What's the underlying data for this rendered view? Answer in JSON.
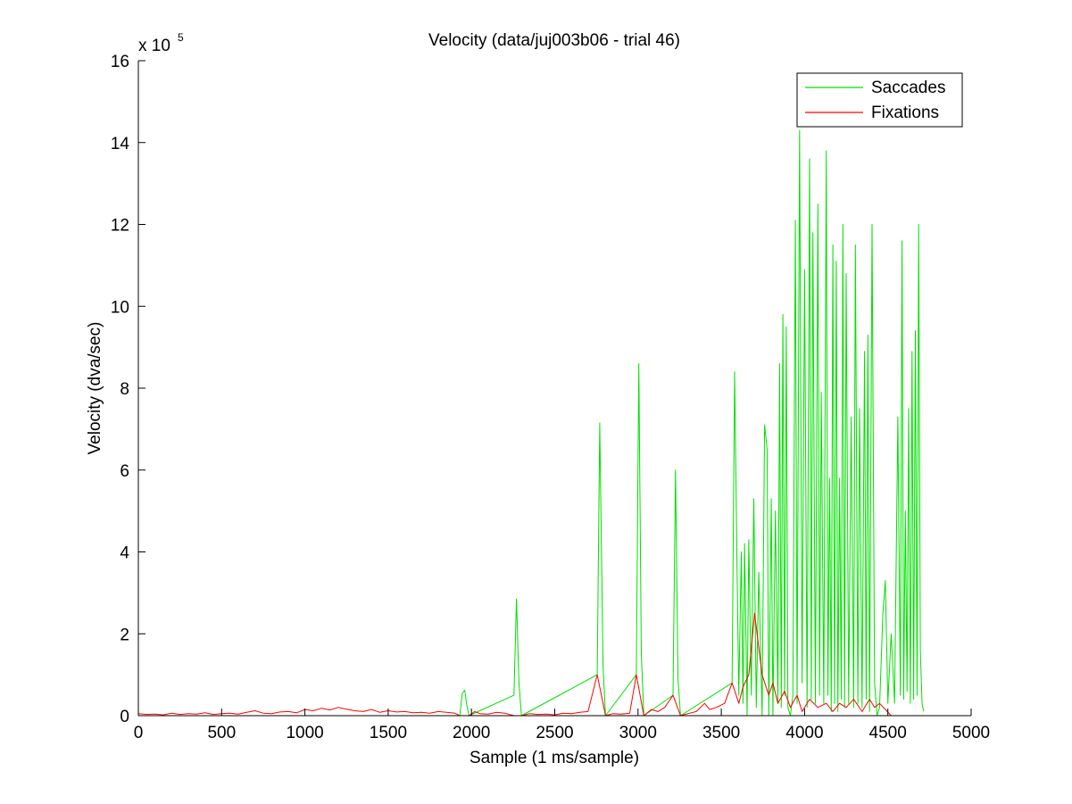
{
  "chart_data": {
    "type": "line",
    "title": "Velocity (data/juj003b06 - trial 46)",
    "xlabel": "Sample (1 ms/sample)",
    "ylabel": "Velocity (dva/sec)",
    "exponent_label": {
      "base": "x 10",
      "power": "5"
    },
    "xlim": [
      0,
      5000
    ],
    "ylim": [
      0,
      16
    ],
    "y_multiplier": 100000,
    "xticks": [
      0,
      500,
      1000,
      1500,
      2000,
      2500,
      3000,
      3500,
      4000,
      4500,
      5000
    ],
    "yticks": [
      0,
      2,
      4,
      6,
      8,
      10,
      12,
      14,
      16
    ],
    "grid": false,
    "legend_position": "top-right",
    "colors": {
      "saccades": "#00e000",
      "fixations": "#ff0000",
      "axes": "#000000"
    },
    "series": [
      {
        "name": "Saccades",
        "color": "#00e000",
        "x": [
          1930,
          1945,
          1960,
          1970,
          1985,
          2255,
          2270,
          2285,
          2300,
          2755,
          2770,
          2790,
          2805,
          2990,
          3005,
          3020,
          3035,
          3210,
          3225,
          3240,
          3255,
          3565,
          3580,
          3595,
          3605,
          3620,
          3630,
          3640,
          3655,
          3665,
          3680,
          3695,
          3710,
          3725,
          3745,
          3760,
          3775,
          3785,
          3800,
          3810,
          3825,
          3840,
          3850,
          3860,
          3870,
          3880,
          3890,
          3900,
          3915,
          3930,
          3945,
          3955,
          3970,
          3985,
          4000,
          4015,
          4030,
          4040,
          4050,
          4065,
          4080,
          4090,
          4100,
          4115,
          4130,
          4140,
          4150,
          4160,
          4170,
          4180,
          4190,
          4200,
          4210,
          4220,
          4230,
          4240,
          4250,
          4265,
          4280,
          4295,
          4305,
          4320,
          4330,
          4345,
          4360,
          4370,
          4380,
          4390,
          4405,
          4420,
          4435,
          4450,
          4470,
          4485,
          4500,
          4520,
          4540,
          4560,
          4575,
          4585,
          4595,
          4605,
          4615,
          4625,
          4635,
          4645,
          4655,
          4665,
          4675,
          4685,
          4695,
          4705,
          4715
        ],
        "y": [
          0.0,
          0.55,
          0.62,
          0.3,
          0.0,
          0.5,
          2.85,
          0.8,
          0.0,
          1.0,
          7.15,
          1.2,
          0.0,
          1.0,
          8.6,
          1.5,
          0.0,
          0.5,
          6.0,
          0.9,
          0.0,
          0.8,
          8.4,
          3.5,
          0.5,
          4.0,
          0.3,
          4.2,
          0.0,
          4.3,
          0.5,
          5.3,
          0.2,
          3.5,
          0.0,
          7.1,
          6.5,
          0.0,
          5.3,
          0.0,
          5.0,
          0.3,
          8.6,
          0.2,
          9.8,
          0.5,
          9.5,
          0.2,
          0.0,
          0.5,
          12.1,
          0.3,
          14.3,
          0.8,
          10.9,
          0.2,
          13.6,
          0.4,
          11.8,
          0.3,
          12.5,
          0.5,
          7.9,
          0.3,
          13.8,
          0.5,
          5.8,
          0.1,
          11.5,
          0.3,
          11.1,
          0.1,
          5.8,
          0.4,
          12.0,
          0.2,
          10.8,
          0.3,
          7.3,
          0.2,
          11.5,
          0.3,
          7.5,
          0.2,
          8.9,
          0.4,
          9.3,
          0.1,
          12.0,
          0.8,
          0.0,
          0.2,
          2.5,
          3.3,
          0.3,
          2.0,
          0.3,
          7.3,
          0.5,
          11.6,
          0.4,
          5.0,
          0.6,
          7.5,
          0.3,
          8.9,
          0.4,
          9.4,
          0.5,
          12.0,
          1.6,
          0.3,
          0.1
        ]
      },
      {
        "name": "Fixations",
        "color": "#ff0000",
        "x": [
          0,
          50,
          100,
          150,
          200,
          250,
          300,
          350,
          400,
          450,
          500,
          550,
          600,
          650,
          700,
          750,
          800,
          850,
          900,
          950,
          1000,
          1050,
          1100,
          1150,
          1200,
          1250,
          1300,
          1350,
          1400,
          1450,
          1500,
          1550,
          1600,
          1650,
          1700,
          1750,
          1800,
          1850,
          1900,
          1930,
          1985,
          2020,
          2050,
          2100,
          2150,
          2200,
          2255,
          2300,
          2350,
          2400,
          2450,
          2500,
          2550,
          2600,
          2650,
          2700,
          2755,
          2805,
          2850,
          2900,
          2950,
          2990,
          3035,
          3080,
          3120,
          3160,
          3210,
          3255,
          3300,
          3350,
          3400,
          3430,
          3470,
          3520,
          3565,
          3605,
          3630,
          3665,
          3700,
          3745,
          3785,
          3810,
          3840,
          3880,
          3915,
          3955,
          3985,
          4030,
          4080,
          4130,
          4170,
          4210,
          4250,
          4295,
          4345,
          4390,
          4420,
          4450,
          4520
        ],
        "y": [
          0.05,
          0.03,
          0.04,
          0.02,
          0.06,
          0.03,
          0.05,
          0.04,
          0.07,
          0.03,
          0.05,
          0.06,
          0.04,
          0.08,
          0.12,
          0.06,
          0.05,
          0.09,
          0.1,
          0.07,
          0.15,
          0.12,
          0.18,
          0.14,
          0.2,
          0.16,
          0.12,
          0.1,
          0.15,
          0.08,
          0.12,
          0.09,
          0.1,
          0.07,
          0.08,
          0.06,
          0.1,
          0.08,
          0.06,
          0.0,
          0.0,
          0.1,
          0.05,
          0.04,
          0.08,
          0.06,
          0.0,
          0.0,
          0.05,
          0.03,
          0.04,
          0.02,
          0.06,
          0.05,
          0.08,
          0.1,
          1.0,
          0.0,
          0.05,
          0.04,
          0.06,
          1.0,
          0.0,
          0.15,
          0.1,
          0.2,
          0.5,
          0.0,
          0.05,
          0.1,
          0.3,
          0.15,
          0.2,
          0.3,
          0.8,
          0.3,
          0.7,
          1.0,
          2.5,
          1.0,
          0.5,
          0.8,
          0.3,
          0.6,
          0.2,
          0.5,
          0.1,
          0.4,
          0.2,
          0.3,
          0.1,
          0.3,
          0.2,
          0.4,
          0.1,
          0.4,
          0.2,
          0.3,
          0.0
        ]
      }
    ]
  }
}
